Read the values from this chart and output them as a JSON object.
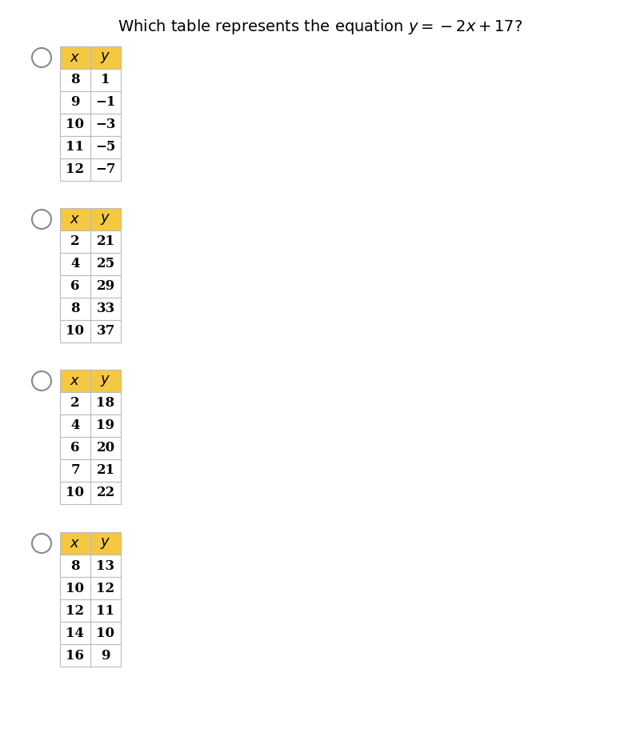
{
  "title": "Which table represents the equation $y = -2x + 17$?",
  "background_color": "#ffffff",
  "header_color": "#f5c842",
  "border_color": "#bbbbbb",
  "text_color": "#000000",
  "tables": [
    {
      "x_vals": [
        "8",
        "9",
        "10",
        "11",
        "12"
      ],
      "y_vals": [
        "1",
        "−1",
        "−3",
        "−5",
        "−7"
      ]
    },
    {
      "x_vals": [
        "2",
        "4",
        "6",
        "8",
        "10"
      ],
      "y_vals": [
        "21",
        "25",
        "29",
        "33",
        "37"
      ]
    },
    {
      "x_vals": [
        "2",
        "4",
        "6",
        "7",
        "10"
      ],
      "y_vals": [
        "18",
        "19",
        "20",
        "21",
        "22"
      ]
    },
    {
      "x_vals": [
        "8",
        "10",
        "12",
        "14",
        "16"
      ],
      "y_vals": [
        "13",
        "12",
        "11",
        "10",
        "9"
      ]
    }
  ]
}
